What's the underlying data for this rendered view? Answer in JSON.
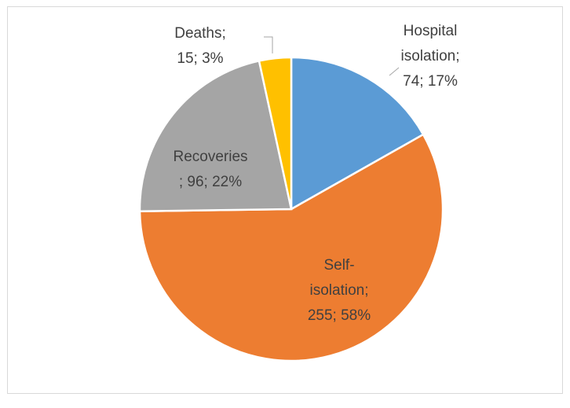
{
  "chart_data": {
    "type": "pie",
    "values": [
      74,
      255,
      96,
      15
    ],
    "value_labels": [
      [
        "Hospital",
        "isolation;",
        "74; 17%"
      ],
      [
        "Self-",
        "isolation;",
        "255; 58%"
      ],
      [
        "Recoveries",
        "; 96; 22%"
      ],
      [
        "Deaths;",
        "15; 3%"
      ]
    ],
    "colors": [
      "#5b9bd5",
      "#ed7d31",
      "#a5a5a5",
      "#ffc000"
    ]
  }
}
